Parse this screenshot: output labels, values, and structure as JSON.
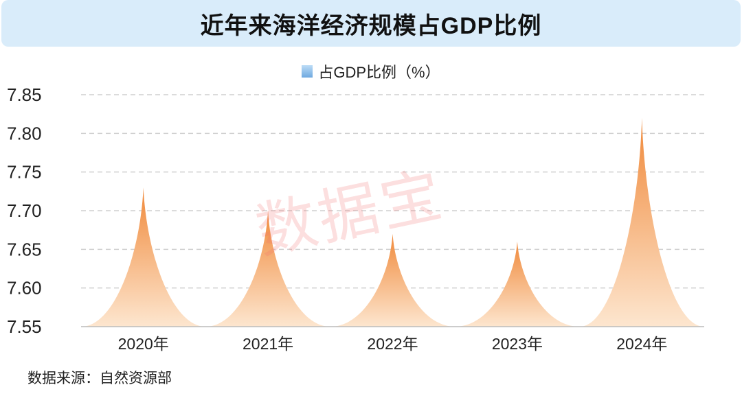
{
  "header": {
    "title": "近年来海洋经济规模占GDP比例"
  },
  "source": "数据来源：自然资源部",
  "watermark": "数据宝",
  "colors": {
    "peak": "#f0893a",
    "base": "#fde6cf",
    "header_bg": "#d9ecfa"
  },
  "chart_data": {
    "type": "bar",
    "title": "近年来海洋经济规模占GDP比例",
    "categories": [
      "2020年",
      "2021年",
      "2022年",
      "2023年",
      "2024年"
    ],
    "series": [
      {
        "name": "占GDP比例（%）",
        "values": [
          7.73,
          7.7,
          7.67,
          7.66,
          7.82
        ]
      }
    ],
    "legend": "占GDP比例（%）",
    "legend_position": "top-center",
    "ylim": [
      7.55,
      7.85
    ],
    "yticks": [
      "7.55",
      "7.60",
      "7.65",
      "7.70",
      "7.75",
      "7.80",
      "7.85"
    ],
    "grid": true
  }
}
